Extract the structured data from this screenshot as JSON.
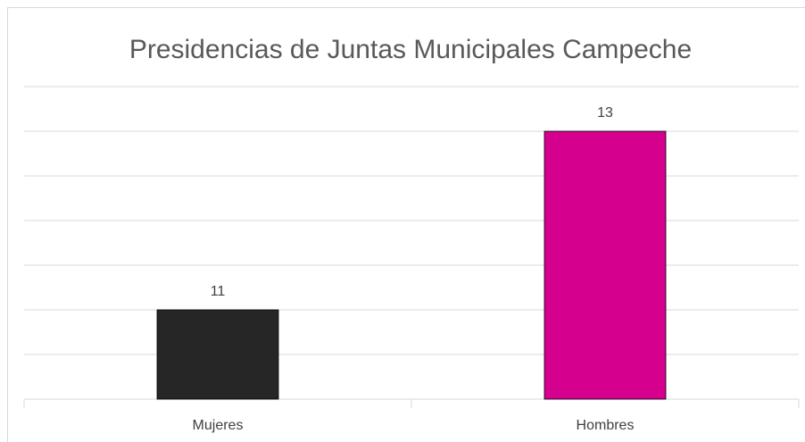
{
  "chart_data": {
    "type": "bar",
    "title": "Presidencias de Juntas Municipales Campeche",
    "categories": [
      "Mujeres",
      "Hombres"
    ],
    "values": [
      11,
      13
    ],
    "colors": [
      "#262626",
      "#d6008f"
    ],
    "ylim": [
      10,
      13.5
    ],
    "yticks": [
      10,
      10.5,
      11,
      11.5,
      12,
      12.5,
      13,
      13.5
    ],
    "grid": true,
    "data_labels": true
  }
}
